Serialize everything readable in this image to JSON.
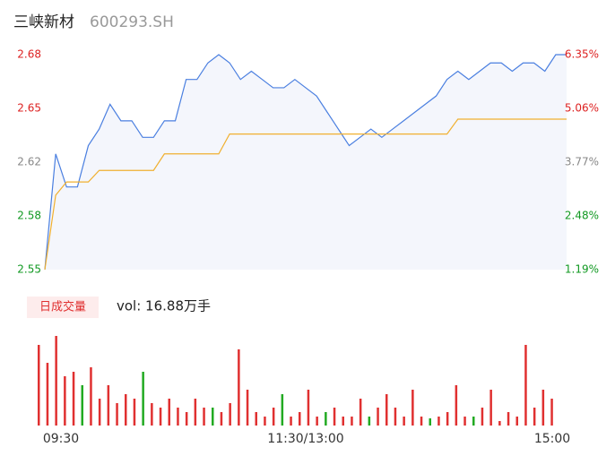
{
  "header": {
    "name": "三峡新材",
    "code": "600293.SH"
  },
  "chart_data": [
    {
      "type": "line",
      "xlim": [
        0,
        240
      ],
      "xticks": [
        {
          "value": 0,
          "label": "09:30"
        },
        {
          "value": 120,
          "label": "11:30/13:00"
        },
        {
          "value": 240,
          "label": "15:00"
        }
      ],
      "ylim": [
        2.55,
        2.68
      ],
      "yticks": [
        2.55,
        {
          "value": 2.5825,
          "label": "2.58"
        },
        {
          "value": 2.615,
          "label": "2.62"
        },
        {
          "value": 2.6475,
          "label": "2.65"
        },
        2.68
      ],
      "ytick_colors": [
        "#119922",
        "#119922",
        "#888888",
        "#dd2222",
        "#dd2222"
      ],
      "y2lim": [
        1.19,
        6.35
      ],
      "y2ticks": [
        {
          "value": 1.19,
          "label": "1.19%"
        },
        {
          "value": 2.48,
          "label": "2.48%"
        },
        {
          "value": 3.77,
          "label": "3.77%"
        },
        {
          "value": 5.06,
          "label": "5.06%"
        },
        {
          "value": 6.35,
          "label": "6.35%"
        }
      ],
      "x": [
        0,
        5,
        10,
        15,
        20,
        25,
        30,
        35,
        40,
        45,
        50,
        55,
        60,
        65,
        70,
        75,
        80,
        85,
        90,
        95,
        100,
        105,
        110,
        115,
        120,
        125,
        130,
        135,
        140,
        145,
        150,
        155,
        160,
        165,
        170,
        175,
        180,
        185,
        190,
        195,
        200,
        205,
        210,
        215,
        220,
        225,
        230,
        235,
        240
      ],
      "series": [
        {
          "name": "price",
          "color": "#4a7fe0",
          "fill": "#f4f6fc",
          "values": [
            2.55,
            2.62,
            2.6,
            2.6,
            2.625,
            2.635,
            2.65,
            2.64,
            2.64,
            2.63,
            2.63,
            2.64,
            2.64,
            2.665,
            2.665,
            2.675,
            2.68,
            2.675,
            2.665,
            2.67,
            2.665,
            2.66,
            2.66,
            2.665,
            2.66,
            2.655,
            2.645,
            2.635,
            2.625,
            2.63,
            2.635,
            2.63,
            2.635,
            2.64,
            2.645,
            2.65,
            2.655,
            2.665,
            2.67,
            2.665,
            2.67,
            2.675,
            2.675,
            2.67,
            2.675,
            2.675,
            2.67,
            2.68,
            2.68
          ]
        },
        {
          "name": "average",
          "color": "#f0b030",
          "values": [
            2.55,
            2.595,
            2.603,
            2.603,
            2.603,
            2.61,
            2.61,
            2.61,
            2.61,
            2.61,
            2.61,
            2.62,
            2.62,
            2.62,
            2.62,
            2.62,
            2.62,
            2.632,
            2.632,
            2.632,
            2.632,
            2.632,
            2.632,
            2.632,
            2.632,
            2.632,
            2.632,
            2.632,
            2.632,
            2.632,
            2.632,
            2.632,
            2.632,
            2.632,
            2.632,
            2.632,
            2.632,
            2.632,
            2.641,
            2.641,
            2.641,
            2.641,
            2.641,
            2.641,
            2.641,
            2.641,
            2.641,
            2.641,
            2.641
          ]
        }
      ]
    },
    {
      "type": "bar",
      "label": "日成交量",
      "summary": "vol: 16.88万手",
      "xlim": [
        0,
        240
      ],
      "ylim": [
        0,
        5000
      ],
      "x": [
        0,
        4,
        8,
        12,
        16,
        20,
        24,
        28,
        32,
        36,
        40,
        44,
        48,
        52,
        56,
        60,
        64,
        68,
        72,
        76,
        80,
        84,
        88,
        92,
        96,
        100,
        104,
        108,
        112,
        116,
        120,
        124,
        128,
        132,
        136,
        140,
        144,
        148,
        152,
        156,
        160,
        164,
        168,
        172,
        176,
        180,
        184,
        188,
        192,
        196,
        200,
        204,
        208,
        212,
        216,
        220,
        224,
        228,
        232,
        236
      ],
      "values": [
        4500,
        3500,
        5000,
        2750,
        3000,
        2250,
        3250,
        1500,
        2250,
        1250,
        1750,
        1500,
        3000,
        1250,
        1000,
        1500,
        1000,
        750,
        1500,
        1000,
        1000,
        750,
        1250,
        4250,
        2000,
        750,
        500,
        1000,
        1750,
        500,
        750,
        2000,
        500,
        750,
        1000,
        500,
        500,
        1500,
        500,
        1000,
        1750,
        1000,
        500,
        2000,
        500,
        400,
        500,
        750,
        2250,
        500,
        500,
        1000,
        2000,
        250,
        750,
        500,
        4500,
        1000,
        2000,
        1500
      ],
      "bar_colors": [
        "#e03030",
        "#e03030",
        "#e03030",
        "#e03030",
        "#e03030",
        "#22aa22",
        "#e03030",
        "#e03030",
        "#e03030",
        "#e03030",
        "#e03030",
        "#e03030",
        "#22aa22",
        "#e03030",
        "#e03030",
        "#e03030",
        "#e03030",
        "#e03030",
        "#e03030",
        "#e03030",
        "#22aa22",
        "#e03030",
        "#e03030",
        "#e03030",
        "#e03030",
        "#e03030",
        "#e03030",
        "#e03030",
        "#22aa22",
        "#e03030",
        "#e03030",
        "#e03030",
        "#e03030",
        "#22aa22",
        "#e03030",
        "#e03030",
        "#e03030",
        "#e03030",
        "#22aa22",
        "#e03030",
        "#e03030",
        "#e03030",
        "#e03030",
        "#e03030",
        "#e03030",
        "#22aa22",
        "#e03030",
        "#e03030",
        "#e03030",
        "#e03030",
        "#22aa22",
        "#e03030",
        "#e03030",
        "#e03030",
        "#e03030",
        "#e03030",
        "#e03030",
        "#e03030",
        "#e03030",
        "#e03030"
      ]
    }
  ]
}
